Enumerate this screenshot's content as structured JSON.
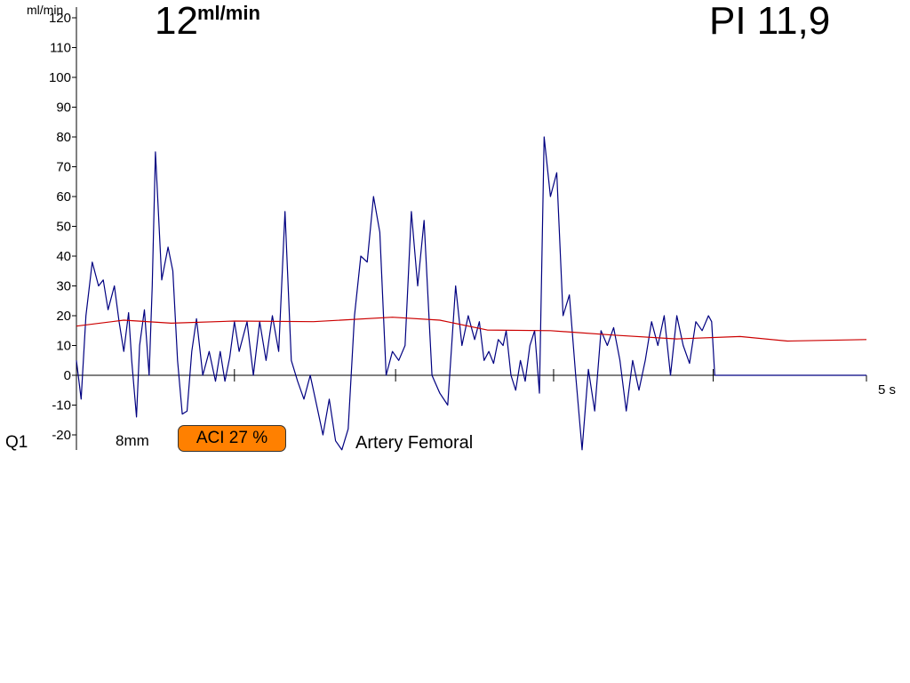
{
  "header": {
    "flow_value": "12",
    "flow_unit": "ml/min",
    "pi_text": "PI 11,9"
  },
  "footer": {
    "probe": "Q1",
    "probe_size": "8mm",
    "aci": "ACI 27 %",
    "vessel": "Artery Femoral"
  },
  "colors": {
    "flow_trace": "#000080",
    "mean_trace": "#cc0000",
    "aci_badge": "#ff8000"
  },
  "chart_data": {
    "type": "line",
    "ylabel": "ml/min",
    "x_end_label": "5 s",
    "ylim": [
      -25,
      120
    ],
    "xlim": [
      0,
      5
    ],
    "yticks": [
      120,
      110,
      100,
      90,
      80,
      70,
      60,
      50,
      40,
      30,
      20,
      10,
      0,
      -10,
      -20
    ],
    "beat_markers_s": [
      1.0,
      2.02,
      3.02,
      4.03
    ],
    "series": [
      {
        "role": "instantaneous flow",
        "color": "#000080",
        "x": [
          0,
          0.03,
          0.06,
          0.1,
          0.14,
          0.17,
          0.2,
          0.24,
          0.27,
          0.3,
          0.33,
          0.35,
          0.38,
          0.4,
          0.43,
          0.46,
          0.48,
          0.5,
          0.54,
          0.58,
          0.61,
          0.64,
          0.67,
          0.7,
          0.73,
          0.76,
          0.8,
          0.84,
          0.88,
          0.91,
          0.94,
          0.97,
          1.0,
          1.03,
          1.08,
          1.12,
          1.16,
          1.2,
          1.24,
          1.28,
          1.32,
          1.36,
          1.4,
          1.44,
          1.48,
          1.52,
          1.56,
          1.6,
          1.64,
          1.68,
          1.72,
          1.76,
          1.8,
          1.84,
          1.88,
          1.92,
          1.96,
          2.0,
          2.04,
          2.08,
          2.12,
          2.16,
          2.2,
          2.25,
          2.3,
          2.35,
          2.4,
          2.44,
          2.48,
          2.52,
          2.55,
          2.58,
          2.61,
          2.64,
          2.67,
          2.7,
          2.72,
          2.75,
          2.78,
          2.81,
          2.84,
          2.87,
          2.9,
          2.93,
          2.96,
          3.0,
          3.04,
          3.08,
          3.12,
          3.16,
          3.2,
          3.24,
          3.28,
          3.32,
          3.36,
          3.4,
          3.44,
          3.48,
          3.52,
          3.56,
          3.6,
          3.64,
          3.68,
          3.72,
          3.76,
          3.8,
          3.84,
          3.88,
          3.92,
          3.96,
          4.0,
          4.02,
          4.04,
          4.06,
          4.08,
          4.1,
          4.12,
          4.14,
          4.17,
          4.2,
          4.24,
          4.28,
          4.32,
          4.36,
          4.4,
          4.44,
          4.48,
          4.52,
          4.56,
          4.6,
          4.64,
          4.68,
          4.72,
          4.76,
          4.8,
          4.84,
          4.88,
          4.92,
          4.96,
          5.0
        ],
        "y": [
          5,
          -8,
          20,
          38,
          30,
          32,
          22,
          30,
          18,
          8,
          21,
          5,
          -14,
          10,
          22,
          0,
          30,
          75,
          32,
          43,
          35,
          5,
          -13,
          -12,
          8,
          19,
          0,
          8,
          -2,
          8,
          -2,
          6,
          18,
          8,
          18,
          0,
          18,
          5,
          20,
          8,
          55,
          5,
          -2,
          -8,
          0,
          -10,
          -20,
          -8,
          -22,
          -25,
          -18,
          20,
          40,
          38,
          60,
          48,
          0,
          8,
          5,
          10,
          55,
          30,
          52,
          0,
          -6,
          -10,
          30,
          10,
          20,
          12,
          18,
          5,
          8,
          4,
          12,
          10,
          15,
          0,
          -5,
          5,
          -2,
          10,
          15,
          -6,
          80,
          60,
          68,
          20,
          27,
          0,
          -25,
          2,
          -12,
          15,
          10,
          16,
          5,
          -12,
          5,
          -5,
          5,
          18,
          10,
          20,
          0,
          20,
          10,
          4,
          18,
          15,
          20,
          18,
          0,
          0,
          0,
          0,
          0,
          0,
          0,
          0,
          0,
          0,
          0,
          0,
          0,
          0,
          0,
          0,
          0,
          0,
          0,
          0,
          0,
          0,
          0,
          0,
          0,
          0,
          0,
          0
        ]
      },
      {
        "role": "mean flow",
        "color": "#cc0000",
        "x": [
          0,
          0.3,
          0.6,
          1.0,
          1.5,
          2.0,
          2.3,
          2.6,
          3.0,
          3.4,
          3.8,
          4.2,
          4.5,
          5.0
        ],
        "y": [
          16.5,
          18.5,
          17.5,
          18.2,
          18.0,
          19.5,
          18.5,
          15.2,
          15.0,
          13.5,
          12.2,
          13.0,
          11.5,
          12.0
        ]
      }
    ]
  }
}
